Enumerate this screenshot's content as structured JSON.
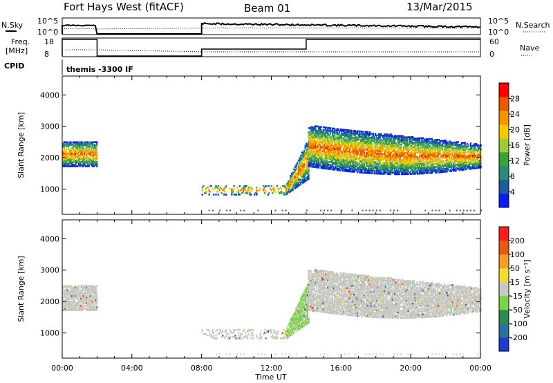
{
  "header": {
    "station": "Fort Hays West (fitACF)",
    "beam": "Beam 01",
    "date": "13/Mar/2015"
  },
  "status_panels": {
    "nsky_label": "N.Sky",
    "nsearch_label": "N.Search",
    "nsky_ticks": [
      "10^5",
      "10^0"
    ],
    "nsearch_ticks": [
      "10^5",
      "10^0"
    ],
    "freq_label_top": "Freq.",
    "freq_label_bottom": "[MHz]",
    "freq_ticks": [
      "18",
      "8"
    ],
    "nave_label": "Nave",
    "nave_ticks": [
      "60",
      "0"
    ],
    "cpid_label": "CPID",
    "cpid_text": "themis -3300 IF"
  },
  "chart_data": [
    {
      "type": "heatmap",
      "name": "power",
      "ylabel": "Slant Range [km]",
      "yticks": [
        1000,
        2000,
        3000,
        4000
      ],
      "ylim": [
        200,
        4600
      ],
      "xlim": [
        0,
        24
      ],
      "colorbar_label": "Power [dB]",
      "colorbar_ticks": [
        "28",
        "24",
        "20",
        "16",
        "12",
        "8",
        "4"
      ],
      "colors": [
        "#0a1ef0",
        "#1e5aa0",
        "#2c8a78",
        "#3ca03c",
        "#a0c83c",
        "#f5c800",
        "#f09600",
        "#e65a00",
        "#ff0000"
      ],
      "regions": [
        {
          "t0": 0.0,
          "t1": 2.0,
          "r0": 1700,
          "r1": 2500
        },
        {
          "t0": 8.0,
          "t1": 12.8,
          "r0": 800,
          "r1": 1100
        },
        {
          "t0": 12.8,
          "t1": 14.1,
          "r0": 800,
          "r1": 2700
        },
        {
          "t0": 14.1,
          "t1": 24.0,
          "r0": 1400,
          "r1": 3000
        }
      ]
    },
    {
      "type": "heatmap",
      "name": "velocity",
      "ylabel": "Slant Range [km]",
      "xlabel": "Time UT",
      "xticks": [
        "00:00",
        "04:00",
        "08:00",
        "12:00",
        "16:00",
        "20:00",
        "00:00"
      ],
      "yticks": [
        1000,
        2000,
        3000,
        4000
      ],
      "ylim": [
        200,
        4600
      ],
      "xlim": [
        0,
        24
      ],
      "colorbar_label": "Velocity [m s⁻¹]",
      "colorbar_ticks": [
        "200",
        "100",
        "50",
        "15",
        "-15",
        "-50",
        "-100",
        "-200"
      ],
      "colors": [
        "#1e3cc8",
        "#2e6fa0",
        "#2f8a52",
        "#7cd24a",
        "#c8c8c3",
        "#f5dc32",
        "#f0a028",
        "#e65a14",
        "#ff1e1e"
      ],
      "regions": [
        {
          "t0": 0.0,
          "t1": 2.0,
          "r0": 1700,
          "r1": 2500
        },
        {
          "t0": 8.0,
          "t1": 12.8,
          "r0": 800,
          "r1": 1100
        },
        {
          "t0": 12.8,
          "t1": 14.1,
          "r0": 800,
          "r1": 2700
        },
        {
          "t0": 14.1,
          "t1": 24.0,
          "r0": 1400,
          "r1": 3000
        }
      ]
    }
  ]
}
